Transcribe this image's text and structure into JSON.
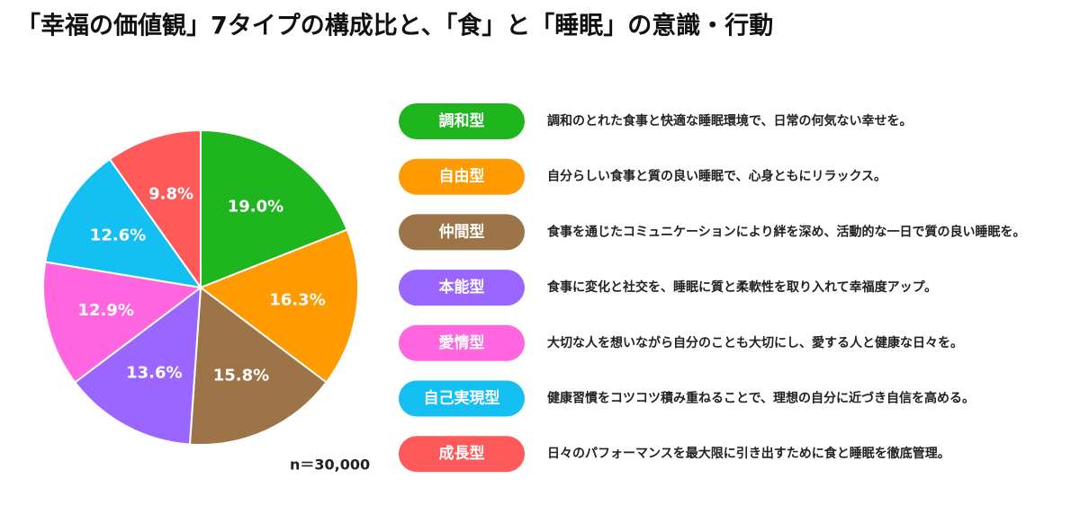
{
  "chart_data": {
    "type": "pie",
    "title": "「幸福の価値観」7タイプの構成比と、「食」と「睡眠」の意識・行動",
    "categories": [
      "調和型",
      "自由型",
      "仲間型",
      "本能型",
      "愛情型",
      "自己実現型",
      "成長型"
    ],
    "values": [
      19.0,
      16.3,
      15.8,
      13.6,
      12.9,
      12.6,
      9.8
    ],
    "value_labels": [
      "19.0%",
      "16.3%",
      "15.8%",
      "13.6%",
      "12.9%",
      "12.6%",
      "9.8%"
    ],
    "colors": [
      "#1fb51f",
      "#ff9a00",
      "#9c7448",
      "#9a66ff",
      "#ff66e0",
      "#14bff2",
      "#ff5a5a"
    ],
    "descriptions": [
      "調和のとれた食事と快適な睡眠環境で、日常の何気ない幸せを。",
      "自分らしい食事と質の良い睡眠で、心身ともにリラックス。",
      "食事を通じたコミュニケーションにより絆を深め、活動的な一日で質の良い睡眠を。",
      "食事に変化と社交を、睡眠に質と柔軟性を取り入れて幸福度アップ。",
      "大切な人を想いながら自分のことも大切にし、愛する人と健康な日々を。",
      "健康習慣をコツコツ積み重ねることで、理想の自分に近づき自信を高める。",
      "日々のパフォーマンスを最大限に引き出すために食と睡眠を徹底管理。"
    ],
    "note": "n＝30,000"
  }
}
